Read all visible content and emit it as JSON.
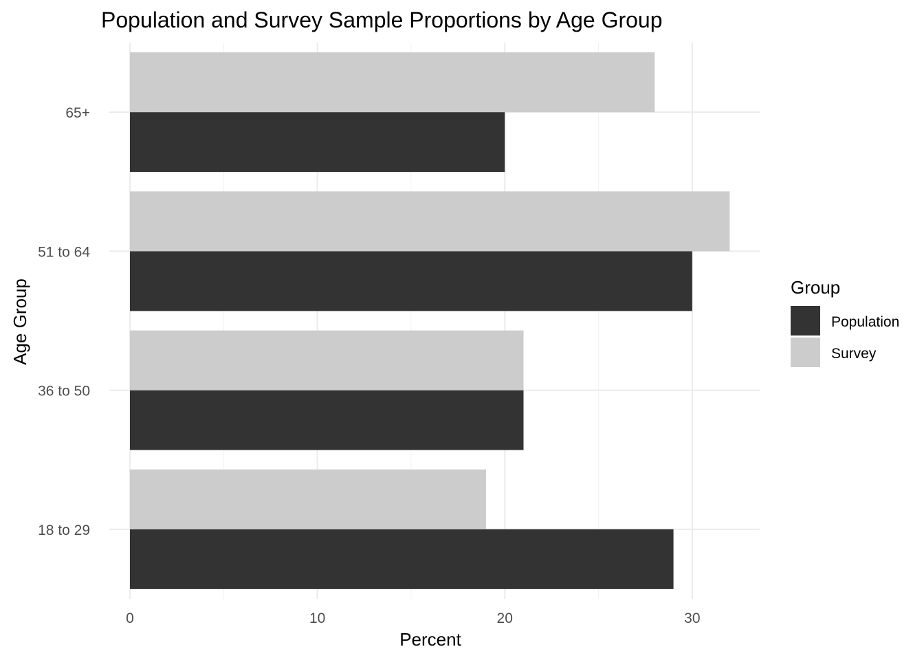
{
  "chart_data": {
    "type": "bar",
    "orientation": "horizontal",
    "title": "Population and Survey Sample Proportions by Age Group",
    "xlabel": "Percent",
    "ylabel": "Age Group",
    "categories": [
      "18 to 29",
      "36 to 50",
      "51 to 64",
      "65+"
    ],
    "series": [
      {
        "name": "Population",
        "color": "#333333",
        "values": [
          29,
          21,
          30,
          20
        ]
      },
      {
        "name": "Survey",
        "color": "#cccccc",
        "values": [
          19,
          21,
          32,
          28
        ]
      }
    ],
    "xlim": [
      0,
      33.6
    ],
    "xticks": [
      0,
      10,
      20,
      30
    ],
    "xtick_labels": [
      "0",
      "10",
      "20",
      "30"
    ],
    "grid": true,
    "legend": {
      "title": "Group",
      "position": "right"
    }
  }
}
